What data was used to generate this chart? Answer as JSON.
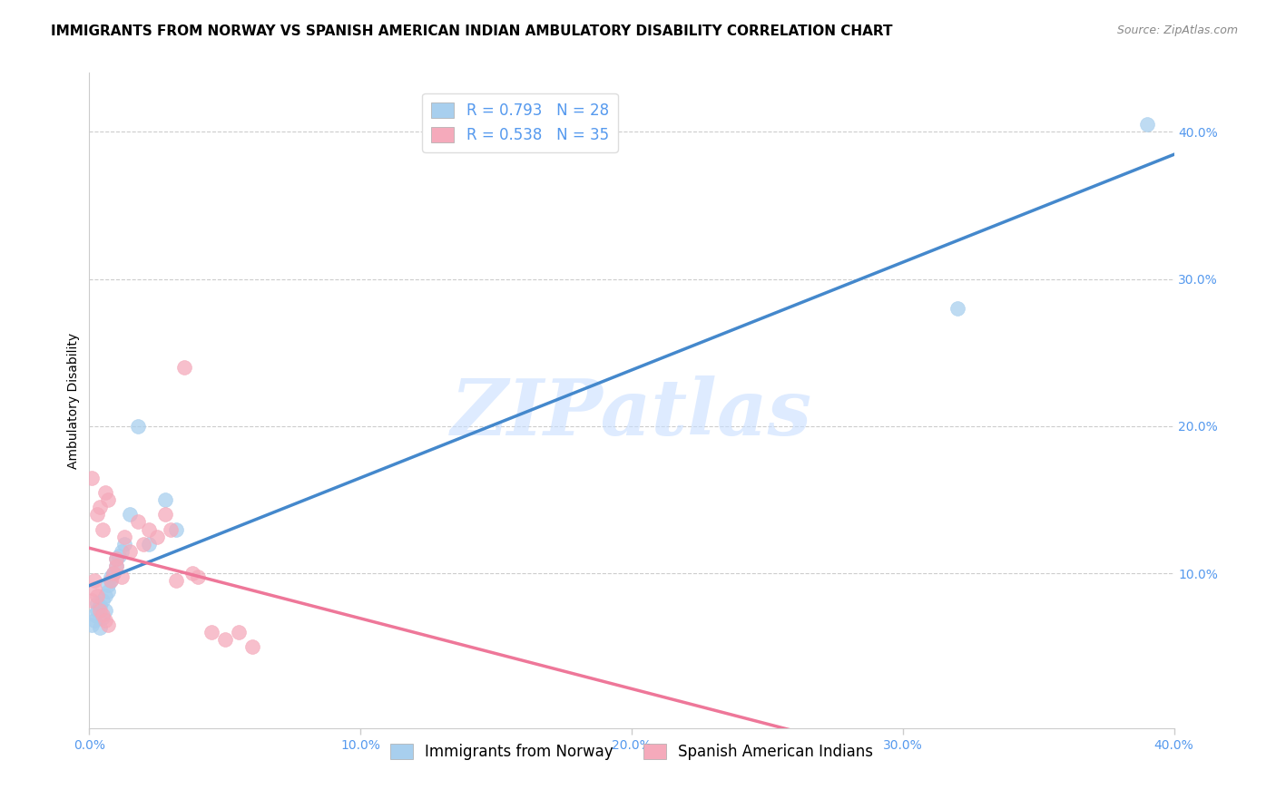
{
  "title": "IMMIGRANTS FROM NORWAY VS SPANISH AMERICAN INDIAN AMBULATORY DISABILITY CORRELATION CHART",
  "source": "Source: ZipAtlas.com",
  "ylabel": "Ambulatory Disability",
  "xlim": [
    0.0,
    0.4
  ],
  "ylim": [
    -0.005,
    0.44
  ],
  "x_ticks": [
    0.0,
    0.1,
    0.2,
    0.3,
    0.4
  ],
  "y_ticks": [
    0.0,
    0.1,
    0.2,
    0.3,
    0.4
  ],
  "x_tick_labels": [
    "0.0%",
    "10.0%",
    "20.0%",
    "30.0%",
    "40.0%"
  ],
  "y_tick_labels_right": [
    "",
    "10.0%",
    "20.0%",
    "30.0%",
    "40.0%"
  ],
  "norway_R": 0.793,
  "norway_N": 28,
  "spanish_R": 0.538,
  "spanish_N": 35,
  "norway_color": "#A8CFEE",
  "spanish_color": "#F5AABB",
  "norway_line_color": "#4488CC",
  "spanish_line_color": "#EE7799",
  "watermark_text": "ZIPatlas",
  "background_color": "#ffffff",
  "grid_color": "#cccccc",
  "axis_color": "#cccccc",
  "tick_color": "#5599EE",
  "title_fontsize": 11,
  "source_fontsize": 9,
  "label_fontsize": 10,
  "tick_fontsize": 10,
  "legend_fontsize": 12,
  "norway_x": [
    0.001,
    0.002,
    0.002,
    0.003,
    0.003,
    0.004,
    0.004,
    0.005,
    0.005,
    0.006,
    0.006,
    0.007,
    0.007,
    0.008,
    0.008,
    0.009,
    0.01,
    0.01,
    0.011,
    0.012,
    0.013,
    0.015,
    0.018,
    0.022,
    0.028,
    0.032,
    0.32,
    0.39
  ],
  "norway_y": [
    0.065,
    0.072,
    0.068,
    0.075,
    0.08,
    0.063,
    0.078,
    0.07,
    0.082,
    0.075,
    0.085,
    0.088,
    0.092,
    0.095,
    0.098,
    0.1,
    0.11,
    0.105,
    0.112,
    0.115,
    0.12,
    0.14,
    0.2,
    0.12,
    0.15,
    0.13,
    0.28,
    0.405
  ],
  "spanish_x": [
    0.001,
    0.001,
    0.002,
    0.002,
    0.003,
    0.003,
    0.004,
    0.004,
    0.005,
    0.005,
    0.006,
    0.006,
    0.007,
    0.007,
    0.008,
    0.009,
    0.01,
    0.01,
    0.012,
    0.013,
    0.015,
    0.018,
    0.02,
    0.022,
    0.025,
    0.028,
    0.03,
    0.032,
    0.035,
    0.038,
    0.04,
    0.045,
    0.05,
    0.055,
    0.06
  ],
  "spanish_y": [
    0.082,
    0.165,
    0.09,
    0.095,
    0.085,
    0.14,
    0.075,
    0.145,
    0.072,
    0.13,
    0.068,
    0.155,
    0.065,
    0.15,
    0.095,
    0.1,
    0.105,
    0.11,
    0.098,
    0.125,
    0.115,
    0.135,
    0.12,
    0.13,
    0.125,
    0.14,
    0.13,
    0.095,
    0.24,
    0.1,
    0.098,
    0.06,
    0.055,
    0.06,
    0.05
  ]
}
